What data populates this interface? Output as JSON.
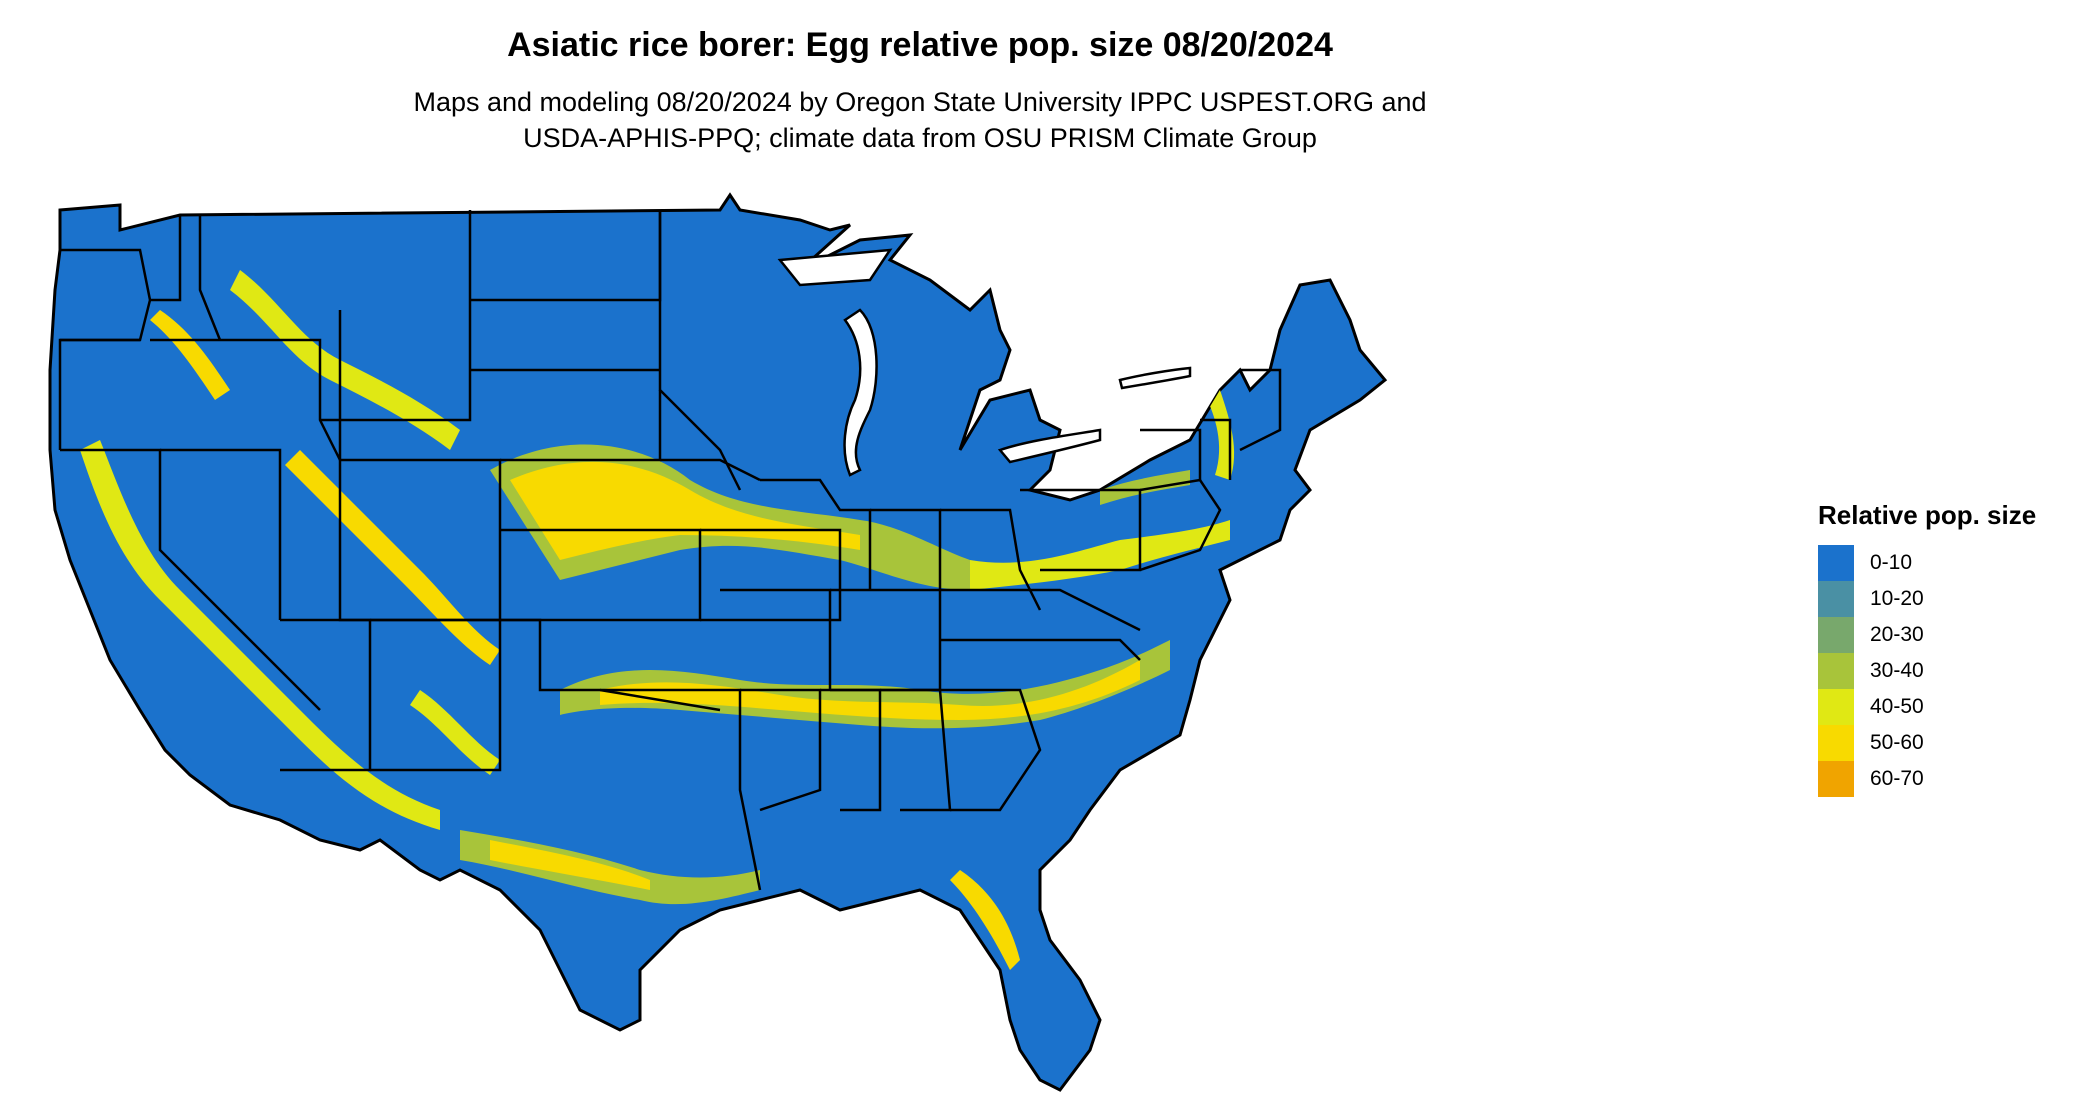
{
  "title": "Asiatic rice borer: Egg relative pop. size 08/20/2024",
  "subtitle": {
    "line1": "Maps and modeling 08/20/2024 by Oregon State University IPPC USPEST.ORG and",
    "line2": "USDA-APHIS-PPQ; climate data from OSU PRISM Climate Group"
  },
  "legend": {
    "title": "Relative pop. size",
    "items": [
      {
        "label": "0-10",
        "color": "#1B72CC"
      },
      {
        "label": "10-20",
        "color": "#4A90A4"
      },
      {
        "label": "20-30",
        "color": "#78A86C"
      },
      {
        "label": "30-40",
        "color": "#A8C43A"
      },
      {
        "label": "40-50",
        "color": "#E0E814"
      },
      {
        "label": "50-60",
        "color": "#F8DA00"
      },
      {
        "label": "60-70",
        "color": "#F0A400"
      }
    ]
  },
  "map": {
    "region": "Contiguous United States",
    "base_color": "#1B72CC",
    "border_color": "#000000"
  }
}
